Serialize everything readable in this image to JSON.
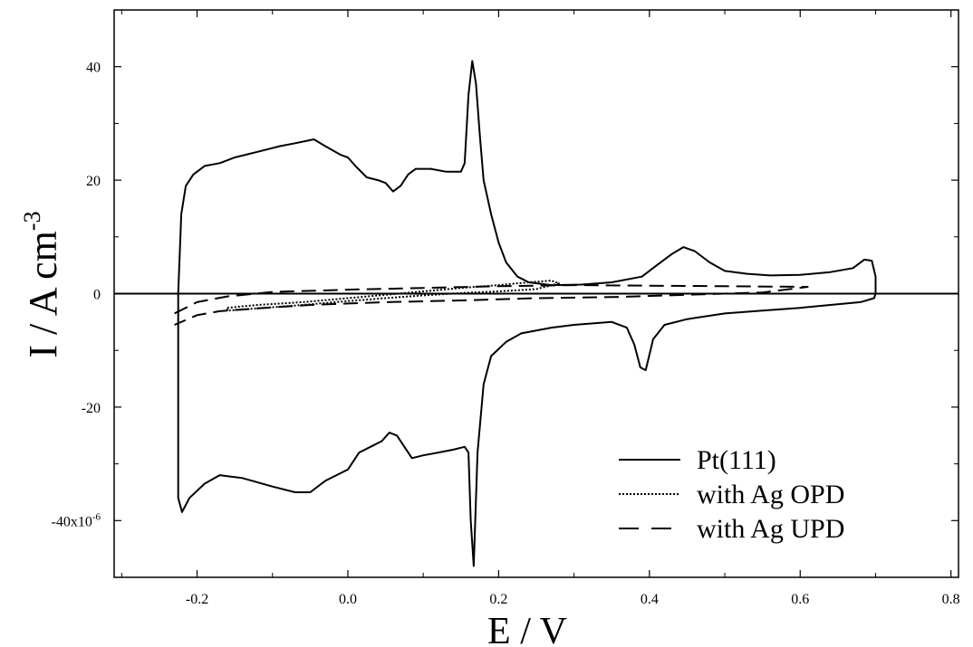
{
  "chart_data": {
    "type": "line",
    "title": "",
    "xlabel": "E / V",
    "ylabel_main": "I / A cm",
    "ylabel_exp": "-3",
    "xlim": [
      -0.31,
      0.81
    ],
    "ylim": [
      -50,
      50
    ],
    "x_ticks": [
      -0.2,
      0.0,
      0.2,
      0.4,
      0.6,
      0.8
    ],
    "x_tick_labels": [
      "-0.2",
      "0.0",
      "0.2",
      "0.4",
      "0.6",
      "0.8"
    ],
    "y_ticks": [
      -40,
      -20,
      0,
      20,
      40
    ],
    "y_tick_labels": [
      "-40x10",
      "-20",
      "0",
      "20",
      "40"
    ],
    "y_tick_label_exp": "-6",
    "grid": false,
    "legend_position": "bottom-right",
    "zero_line": true,
    "series": [
      {
        "name": "Pt(111)",
        "style": "solid",
        "points": [
          [
            -0.225,
            0
          ],
          [
            -0.221,
            14
          ],
          [
            -0.215,
            19
          ],
          [
            -0.205,
            21
          ],
          [
            -0.19,
            22.5
          ],
          [
            -0.17,
            23
          ],
          [
            -0.15,
            24
          ],
          [
            -0.12,
            25
          ],
          [
            -0.09,
            26
          ],
          [
            -0.07,
            26.5
          ],
          [
            -0.045,
            27.2
          ],
          [
            -0.03,
            26
          ],
          [
            -0.01,
            24.5
          ],
          [
            0.0,
            24
          ],
          [
            0.01,
            22.5
          ],
          [
            0.025,
            20.5
          ],
          [
            0.04,
            20
          ],
          [
            0.05,
            19.5
          ],
          [
            0.06,
            18
          ],
          [
            0.07,
            19
          ],
          [
            0.08,
            21
          ],
          [
            0.09,
            22
          ],
          [
            0.11,
            22
          ],
          [
            0.13,
            21.5
          ],
          [
            0.15,
            21.5
          ],
          [
            0.155,
            23
          ],
          [
            0.16,
            35
          ],
          [
            0.165,
            41
          ],
          [
            0.17,
            37
          ],
          [
            0.175,
            28
          ],
          [
            0.18,
            20
          ],
          [
            0.19,
            14
          ],
          [
            0.2,
            9
          ],
          [
            0.21,
            5.5
          ],
          [
            0.225,
            3
          ],
          [
            0.24,
            2
          ],
          [
            0.27,
            1.5
          ],
          [
            0.31,
            1.6
          ],
          [
            0.35,
            2
          ],
          [
            0.39,
            3
          ],
          [
            0.41,
            5
          ],
          [
            0.43,
            7
          ],
          [
            0.445,
            8.2
          ],
          [
            0.46,
            7.5
          ],
          [
            0.48,
            5.5
          ],
          [
            0.5,
            4
          ],
          [
            0.53,
            3.5
          ],
          [
            0.56,
            3.2
          ],
          [
            0.6,
            3.3
          ],
          [
            0.64,
            3.8
          ],
          [
            0.67,
            4.5
          ],
          [
            0.685,
            6
          ],
          [
            0.695,
            5.8
          ],
          [
            0.7,
            3
          ],
          [
            0.7,
            0
          ],
          [
            0.698,
            -0.8
          ],
          [
            0.68,
            -1.5
          ],
          [
            0.64,
            -2
          ],
          [
            0.6,
            -2.5
          ],
          [
            0.55,
            -3
          ],
          [
            0.5,
            -3.5
          ],
          [
            0.45,
            -4.5
          ],
          [
            0.42,
            -5.5
          ],
          [
            0.405,
            -8
          ],
          [
            0.395,
            -13.5
          ],
          [
            0.388,
            -13
          ],
          [
            0.38,
            -9
          ],
          [
            0.37,
            -6
          ],
          [
            0.35,
            -5
          ],
          [
            0.3,
            -5.5
          ],
          [
            0.27,
            -6
          ],
          [
            0.23,
            -7
          ],
          [
            0.21,
            -8.5
          ],
          [
            0.19,
            -11
          ],
          [
            0.18,
            -16
          ],
          [
            0.172,
            -28
          ],
          [
            0.167,
            -48
          ],
          [
            0.163,
            -40
          ],
          [
            0.16,
            -28
          ],
          [
            0.155,
            -27
          ],
          [
            0.14,
            -27.5
          ],
          [
            0.12,
            -28
          ],
          [
            0.1,
            -28.5
          ],
          [
            0.085,
            -29
          ],
          [
            0.075,
            -27
          ],
          [
            0.065,
            -25
          ],
          [
            0.055,
            -24.5
          ],
          [
            0.045,
            -26
          ],
          [
            0.03,
            -27
          ],
          [
            0.015,
            -28
          ],
          [
            0.0,
            -31
          ],
          [
            -0.015,
            -32
          ],
          [
            -0.03,
            -33
          ],
          [
            -0.05,
            -35
          ],
          [
            -0.07,
            -35
          ],
          [
            -0.1,
            -34
          ],
          [
            -0.14,
            -32.5
          ],
          [
            -0.17,
            -32
          ],
          [
            -0.19,
            -33.5
          ],
          [
            -0.21,
            -36
          ],
          [
            -0.22,
            -38.5
          ],
          [
            -0.225,
            -36
          ],
          [
            -0.225,
            -20
          ],
          [
            -0.225,
            0
          ]
        ]
      },
      {
        "name": "with Ag OPD",
        "style": "dotted",
        "points": [
          [
            -0.16,
            -2.5
          ],
          [
            -0.12,
            -2
          ],
          [
            -0.06,
            -1.5
          ],
          [
            0.0,
            -0.8
          ],
          [
            0.05,
            -0.2
          ],
          [
            0.1,
            0.4
          ],
          [
            0.15,
            1
          ],
          [
            0.2,
            1.5
          ],
          [
            0.24,
            2
          ],
          [
            0.27,
            2.3
          ],
          [
            0.28,
            1.8
          ],
          [
            0.25,
            0.8
          ],
          [
            0.2,
            0.4
          ],
          [
            0.15,
            0.1
          ],
          [
            0.1,
            -0.3
          ],
          [
            0.05,
            -0.8
          ],
          [
            0.0,
            -1.3
          ],
          [
            -0.06,
            -2
          ],
          [
            -0.12,
            -2.6
          ],
          [
            -0.16,
            -3
          ],
          [
            -0.16,
            -2.5
          ]
        ]
      },
      {
        "name": "with Ag UPD",
        "style": "dashed",
        "points": [
          [
            -0.23,
            -3.5
          ],
          [
            -0.2,
            -1.5
          ],
          [
            -0.16,
            -0.5
          ],
          [
            -0.1,
            0.3
          ],
          [
            -0.05,
            0.5
          ],
          [
            0.0,
            0.7
          ],
          [
            0.1,
            1
          ],
          [
            0.2,
            1.3
          ],
          [
            0.3,
            1.5
          ],
          [
            0.4,
            1.4
          ],
          [
            0.5,
            1.3
          ],
          [
            0.61,
            1.2
          ],
          [
            0.55,
            0.2
          ],
          [
            0.45,
            -0.2
          ],
          [
            0.35,
            -0.6
          ],
          [
            0.25,
            -0.8
          ],
          [
            0.15,
            -1.2
          ],
          [
            0.05,
            -1.5
          ],
          [
            -0.05,
            -2
          ],
          [
            -0.12,
            -2.6
          ],
          [
            -0.17,
            -3.1
          ],
          [
            -0.2,
            -3.8
          ],
          [
            -0.23,
            -5.5
          ]
        ]
      }
    ]
  }
}
